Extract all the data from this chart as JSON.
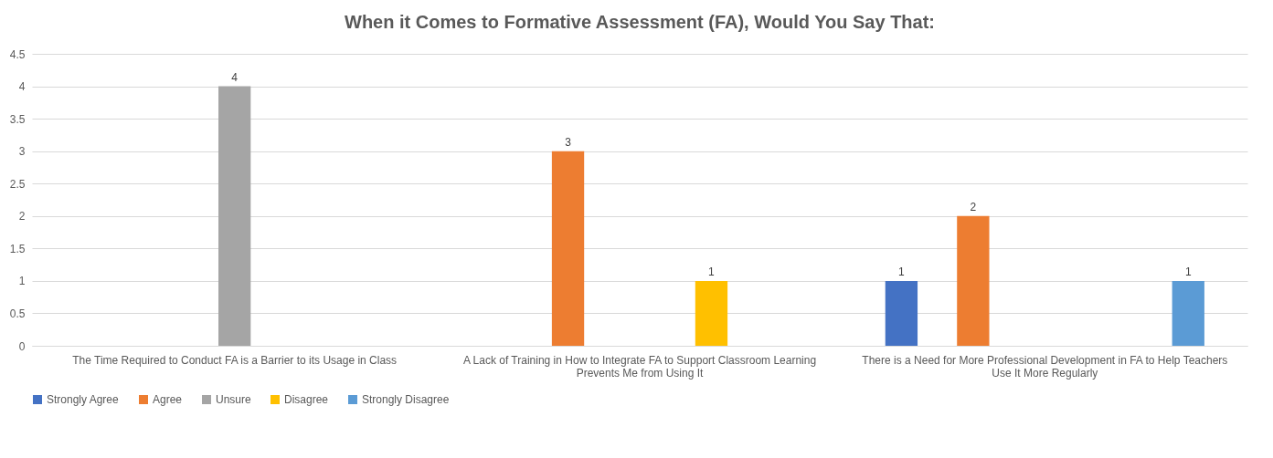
{
  "chart_data": {
    "type": "bar",
    "title": "When it Comes to Formative Assessment (FA), Would You Say That:",
    "categories": [
      "The Time Required to Conduct FA is a Barrier to its Usage in Class",
      "A Lack of Training in How to Integrate FA to Support Classroom Learning Prevents Me from Using It",
      "There is a Need for More Professional Development in FA to Help Teachers Use It More Regularly"
    ],
    "series": [
      {
        "name": "Strongly Agree",
        "color": "#4472c4",
        "values": [
          null,
          null,
          1
        ]
      },
      {
        "name": "Agree",
        "color": "#ed7d31",
        "values": [
          null,
          3,
          2
        ]
      },
      {
        "name": "Unsure",
        "color": "#a5a5a5",
        "values": [
          4,
          null,
          null
        ]
      },
      {
        "name": "Disagree",
        "color": "#ffc000",
        "values": [
          null,
          1,
          null
        ]
      },
      {
        "name": "Strongly Disagree",
        "color": "#5b9bd5",
        "values": [
          null,
          null,
          1
        ]
      }
    ],
    "ylim": [
      0,
      4.5
    ],
    "yticks": [
      0,
      0.5,
      1,
      1.5,
      2,
      2.5,
      3,
      3.5,
      4,
      4.5
    ],
    "grid": "y",
    "legend": "bottom",
    "data_labels": true
  }
}
